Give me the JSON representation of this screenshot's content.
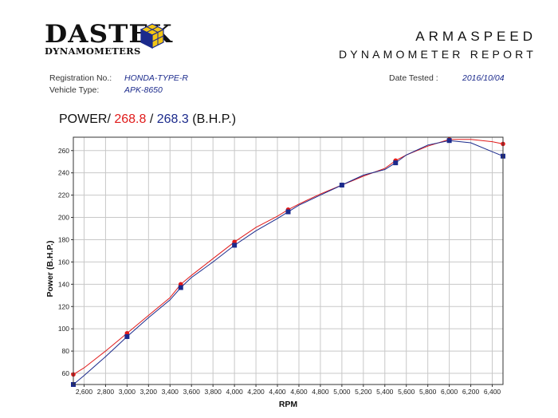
{
  "header": {
    "logo_word": "DASTEK",
    "logo_sub": "DYNAMOMETERS",
    "report_title": "ARMASPEED",
    "report_subtitle": "DYNAMOMETER REPORT"
  },
  "info": {
    "registration_label": "Registration No.:",
    "registration_value": "HONDA-TYPE-R",
    "vehicle_label": "Vehicle Type:",
    "vehicle_value": "APK-8650",
    "date_label": "Date Tested :",
    "date_value": "2016/10/04"
  },
  "power": {
    "label": "POWER/",
    "run1": "268.8",
    "separator": "/",
    "run2": "268.3",
    "unit": "(B.H.P.)"
  },
  "colors": {
    "run1": "#e01a1a",
    "run2": "#1b2a8c",
    "grid": "#c8c8c8"
  },
  "chart_data": {
    "type": "line",
    "title": "",
    "xlabel": "RPM",
    "ylabel": "Power (B.H.P.)",
    "xlim": [
      2500,
      6500
    ],
    "ylim": [
      50,
      272
    ],
    "xticks": [
      "2,600",
      "2,800",
      "3,000",
      "3,200",
      "3,400",
      "3,600",
      "3,800",
      "4,000",
      "4,200",
      "4,400",
      "4,600",
      "4,800",
      "5,000",
      "5,200",
      "5,400",
      "5,600",
      "5,800",
      "6,000",
      "6,200",
      "6,400"
    ],
    "yticks": [
      "60",
      "80",
      "100",
      "120",
      "140",
      "160",
      "180",
      "200",
      "220",
      "240",
      "260"
    ],
    "grid": true,
    "series": [
      {
        "name": "",
        "color": "#e01a1a",
        "marker": "circle",
        "x": [
          2500,
          2600,
          2800,
          3000,
          3200,
          3400,
          3500,
          3600,
          3800,
          4000,
          4200,
          4400,
          4500,
          4600,
          4800,
          5000,
          5200,
          5400,
          5500,
          5600,
          5800,
          6000,
          6200,
          6400,
          6500
        ],
        "y": [
          59,
          65,
          80,
          96,
          112,
          128,
          140,
          148,
          163,
          178,
          191,
          201,
          207,
          212,
          221,
          229,
          237,
          244,
          251,
          256,
          264,
          270,
          270,
          268,
          266
        ],
        "markers_x": [
          2500,
          3000,
          3500,
          4000,
          4500,
          5000,
          5500,
          6000,
          6500
        ],
        "markers_y": [
          59,
          96,
          140,
          178,
          207,
          229,
          251,
          270,
          266
        ]
      },
      {
        "name": "",
        "color": "#1b2a8c",
        "marker": "square",
        "x": [
          2500,
          2600,
          2800,
          3000,
          3200,
          3400,
          3500,
          3600,
          3800,
          4000,
          4200,
          4400,
          4500,
          4600,
          4800,
          5000,
          5200,
          5400,
          5500,
          5600,
          5800,
          6000,
          6200,
          6400,
          6500
        ],
        "y": [
          50,
          58,
          75,
          93,
          110,
          126,
          137,
          146,
          160,
          175,
          188,
          199,
          205,
          211,
          220,
          229,
          238,
          243,
          249,
          256,
          265,
          269,
          267,
          259,
          255
        ],
        "markers_x": [
          2500,
          3000,
          3500,
          4000,
          4500,
          5000,
          5500,
          6000,
          6500
        ],
        "markers_y": [
          50,
          93,
          137,
          175,
          205,
          229,
          249,
          269,
          255
        ]
      }
    ]
  }
}
